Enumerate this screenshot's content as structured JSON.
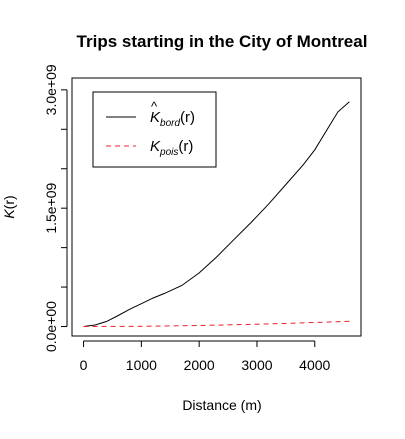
{
  "chart_data": {
    "type": "line",
    "title": "Trips starting in the City of Montreal",
    "xlabel": "Distance (m)",
    "ylabel": "K(r)",
    "xlim": [
      -200,
      4800
    ],
    "ylim": [
      -120000000.0,
      3150000000.0
    ],
    "x_ticks": [
      0,
      1000,
      2000,
      3000,
      4000
    ],
    "x_tick_labels": [
      "0",
      "1000",
      "2000",
      "3000",
      "4000"
    ],
    "y_ticks": [
      0,
      500000000.0,
      1000000000.0,
      1500000000.0,
      2000000000.0,
      2500000000.0,
      3000000000.0
    ],
    "y_tick_labels": [
      "0.0e+00",
      "",
      "",
      "1.5e+09",
      "",
      "",
      "3.0e+09"
    ],
    "grid": false,
    "legend_position": "top-left",
    "series": [
      {
        "name": "K̂bord(r)",
        "color": "#000000",
        "dash": "solid",
        "x": [
          0,
          200,
          400,
          600,
          800,
          1000,
          1200,
          1400,
          1700,
          2000,
          2300,
          2600,
          2900,
          3200,
          3500,
          3800,
          4000,
          4200,
          4400,
          4600
        ],
        "y": [
          0,
          20000000.0,
          65000000.0,
          140000000.0,
          220000000.0,
          290000000.0,
          360000000.0,
          420000000.0,
          520000000.0,
          680000000.0,
          880000000.0,
          1100000000.0,
          1320000000.0,
          1550000000.0,
          1800000000.0,
          2050000000.0,
          2240000000.0,
          2480000000.0,
          2720000000.0,
          2850000000.0
        ]
      },
      {
        "name": "Kpois(r)",
        "color": "#e8202a",
        "dash": "dashed",
        "x": [
          0,
          1000,
          2000,
          3000,
          4000,
          4600
        ],
        "y": [
          0,
          3200000.0,
          13000000.0,
          29000000.0,
          51000000.0,
          66000000.0
        ]
      }
    ],
    "legend": [
      {
        "hat": "^",
        "base": "K",
        "sub": "bord",
        "tail": "(r)",
        "color": "#000000",
        "dash": "solid"
      },
      {
        "hat": "",
        "base": "K",
        "sub": "pois",
        "tail": "(r)",
        "color": "#e8202a",
        "dash": "dashed"
      }
    ]
  }
}
